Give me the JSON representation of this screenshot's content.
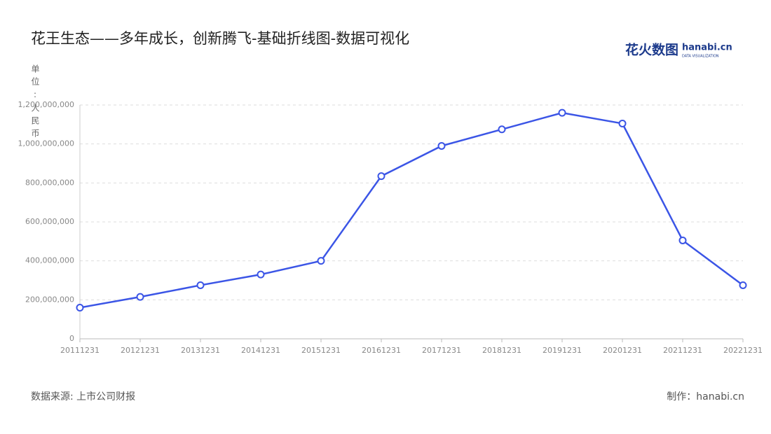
{
  "chart_data": {
    "type": "line",
    "title": "花王生态——多年成长，创新腾飞-基础折线图-数据可视化",
    "y_axis_label": "单位:人民币",
    "brand": "花火数图",
    "brand_site": "hanabi.cn",
    "brand_tagline": "DATA VISUALIZATION",
    "source": "数据来源: 上市公司财报",
    "credit": "制作：hanabi.cn",
    "categories": [
      "20111231",
      "20121231",
      "20131231",
      "20141231",
      "20151231",
      "20161231",
      "20171231",
      "20181231",
      "20191231",
      "20201231",
      "20211231",
      "20221231"
    ],
    "series": [
      {
        "color": "#3b55e6",
        "values": [
          160000000,
          215000000,
          275000000,
          330000000,
          400000000,
          835000000,
          990000000,
          1075000000,
          1160000000,
          1105000000,
          505000000,
          275000000
        ]
      }
    ],
    "ylim": [
      0,
      1200000000
    ],
    "yticks": [
      0,
      {
        "value": 200000000,
        "label": "200,000,000"
      },
      {
        "value": 400000000,
        "label": "400,000,000"
      },
      {
        "value": 600000000,
        "label": "600,000,000"
      },
      {
        "value": 800000000,
        "label": "800,000,000"
      },
      {
        "value": 1000000000,
        "label": "1,000,000,000"
      },
      {
        "value": 1200000000,
        "label": "1,200,000,000"
      }
    ],
    "grid": true
  }
}
